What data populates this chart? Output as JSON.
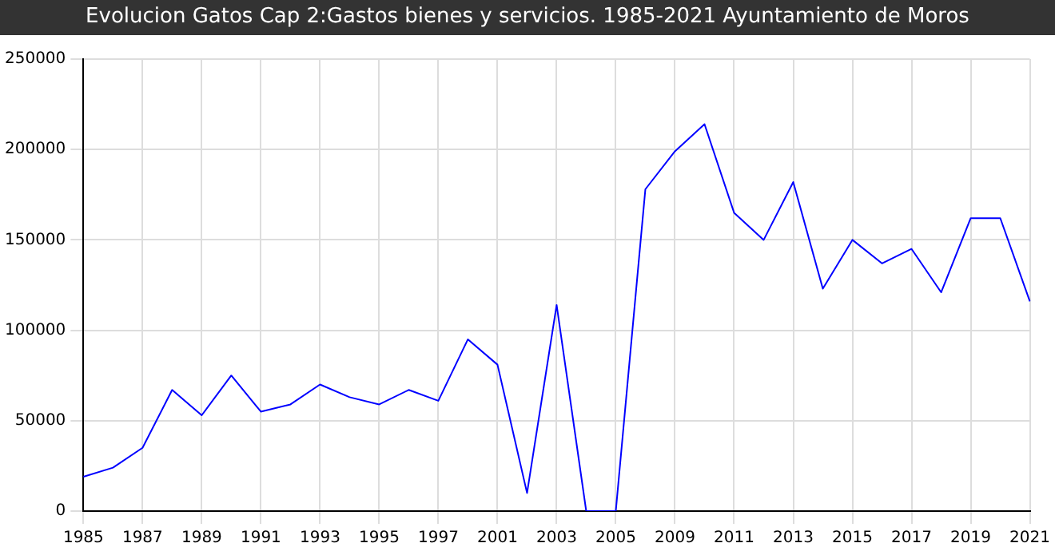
{
  "chart_data": {
    "type": "line",
    "title": "Evolucion Gatos Cap 2:Gastos bienes y servicios. 1985-2021 Ayuntamiento de Moros",
    "categories": [
      "1985",
      null,
      "1987",
      null,
      "1989",
      null,
      "1991",
      null,
      "1993",
      null,
      "1995",
      null,
      "1997",
      null,
      "2001",
      null,
      "2003",
      null,
      "2005",
      null,
      "2009",
      null,
      "2011",
      null,
      "2013",
      null,
      "2015",
      null,
      "2017",
      null,
      "2019",
      null,
      "2021"
    ],
    "series": [
      {
        "color": "#0000ff",
        "values": [
          19000,
          24000,
          35000,
          67000,
          53000,
          75000,
          55000,
          59000,
          70000,
          63000,
          59000,
          67000,
          61000,
          95000,
          81000,
          10000,
          114000,
          0,
          0,
          178000,
          199000,
          214000,
          165000,
          150000,
          182000,
          123000,
          150000,
          137000,
          145000,
          121000,
          162000,
          162000,
          116000
        ]
      }
    ],
    "ylim": [
      0,
      250000
    ],
    "yticks": [
      0,
      50000,
      100000,
      150000,
      200000,
      250000
    ],
    "grid": true,
    "marker": "none",
    "line_style": "solid"
  }
}
